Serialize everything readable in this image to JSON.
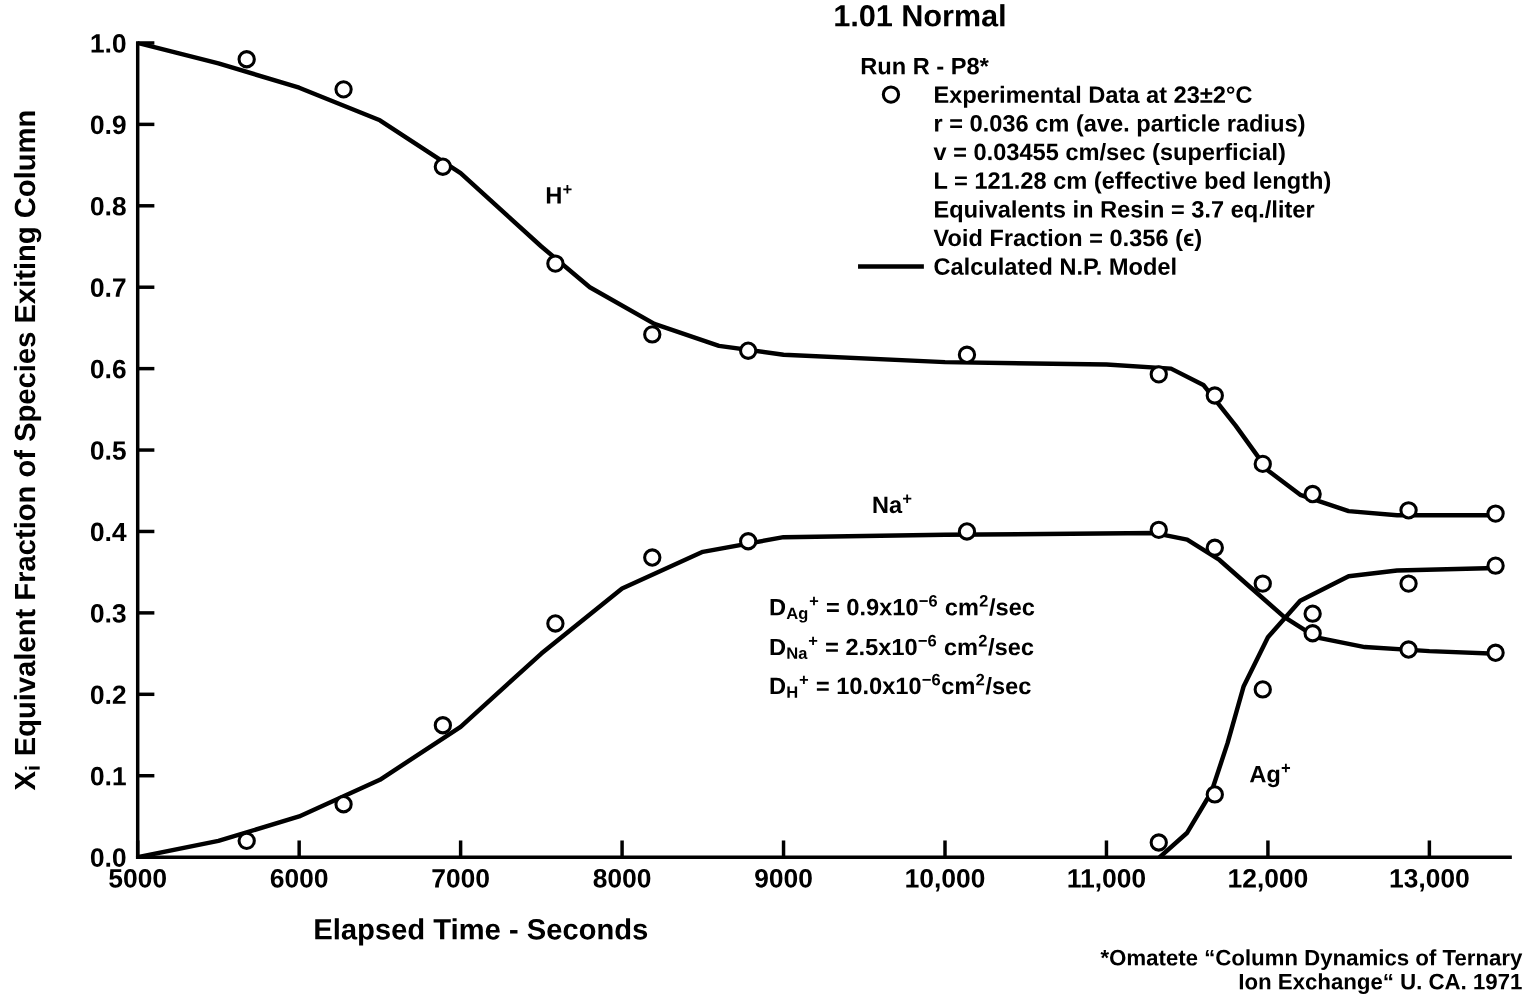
{
  "chart_data": {
    "type": "line",
    "title": "1.01 Normal",
    "xlabel": "Elapsed Time - Seconds",
    "ylabel": "X$_{i}$ Equivalent Fraction of Species Exiting Column",
    "legend_title": "Run R - P8*",
    "legend": "top right",
    "grid": false,
    "xlim": [
      5000,
      13500
    ],
    "ylim": [
      0,
      1.0
    ],
    "xticks": [
      5000,
      6000,
      7000,
      8000,
      9000,
      {
        "value": 10000,
        "label": "10,000"
      },
      {
        "value": 11000,
        "label": "11,000"
      },
      {
        "value": 12000,
        "label": "12,000"
      },
      {
        "value": 13000,
        "label": "13,000"
      }
    ],
    "yticks": [
      {
        "value": 0,
        "label": "0.0"
      },
      0.1,
      0.2,
      0.3,
      0.4,
      0.5,
      0.6,
      0.7,
      0.8,
      0.9,
      {
        "value": 1.0,
        "label": "1.0"
      }
    ],
    "series": [
      {
        "type": "scatter",
        "name": "Experimental Data at 23±2°C",
        "color": "#000000",
        "marker": "circle",
        "x": [
          5675,
          6275,
          6890,
          7587,
          8187,
          8781,
          10136,
          11324,
          11671,
          11968,
          12277,
          12871,
          13410,
          5675,
          6275,
          6890,
          7587,
          8187,
          8781,
          10136,
          11324,
          11671,
          11968,
          12277,
          12871,
          13410,
          11324,
          11671,
          11968,
          12277,
          12871,
          13410
        ],
        "values": [
          0.98,
          0.943,
          0.848,
          0.729,
          0.642,
          0.622,
          0.617,
          0.593,
          0.567,
          0.483,
          0.446,
          0.426,
          0.422,
          0.02,
          0.065,
          0.162,
          0.287,
          0.368,
          0.388,
          0.4,
          0.402,
          0.38,
          0.336,
          0.275,
          0.255,
          0.251,
          0.018,
          0.077,
          0.206,
          0.299,
          0.336,
          0.358
        ]
      },
      {
        "name": "Calculated N.P. Model",
        "color": "#000000",
        "line_style": "solid",
        "x": [
          5000,
          5500,
          6000,
          6500,
          7000,
          7500,
          7800,
          8200,
          8600,
          9000,
          10000,
          11000,
          11400,
          11600,
          11800,
          12000,
          12200,
          12500,
          12800,
          13400
        ],
        "values": [
          1.0,
          0.975,
          0.945,
          0.905,
          0.84,
          0.75,
          0.7,
          0.655,
          0.628,
          0.617,
          0.608,
          0.605,
          0.6,
          0.58,
          0.53,
          0.475,
          0.445,
          0.425,
          0.42,
          0.42
        ]
      },
      {
        "color": "#000000",
        "line_style": "solid",
        "x": [
          5000,
          5500,
          6000,
          6500,
          7000,
          7500,
          8000,
          8500,
          9000,
          10000,
          11300,
          11500,
          11700,
          11900,
          12100,
          12300,
          12600,
          13000,
          13400
        ],
        "values": [
          0.0,
          0.02,
          0.05,
          0.095,
          0.16,
          0.25,
          0.33,
          0.375,
          0.393,
          0.396,
          0.398,
          0.39,
          0.365,
          0.33,
          0.295,
          0.27,
          0.258,
          0.253,
          0.25
        ]
      },
      {
        "color": "#000000",
        "line_style": "solid",
        "x": [
          11330,
          11500,
          11650,
          11750,
          11850,
          12000,
          12200,
          12500,
          12800,
          13400
        ],
        "values": [
          0.0,
          0.03,
          0.08,
          0.14,
          0.21,
          0.27,
          0.315,
          0.345,
          0.352,
          0.355
        ]
      }
    ],
    "annotations": [
      "r = 0.036 cm (ave. particle radius)",
      "v = 0.03455 cm/sec (superficial)",
      "L = 121.28 cm (effective bed length)",
      "Equivalents in Resin = 3.7 eq./liter",
      "Void Fraction = 0.356 (ϵ)",
      "D$_{Ag}$$^{+}$ = 0.9x10$^{−6}$ cm$^{2}$/sec",
      "D$_{Na}$$^{+}$ = 2.5x10$^{−6}$ cm$^{2}$/sec",
      "D$_{H}$$^{+}$ = 10.0x10$^{−6}$cm$^{2}$/sec",
      "*Omatete “Column Dynamics of Ternary\nIon Exchange“ U. CA. 1971",
      "H$^{+}$",
      "Na$^{+}$",
      "Ag$^{+}$"
    ]
  }
}
